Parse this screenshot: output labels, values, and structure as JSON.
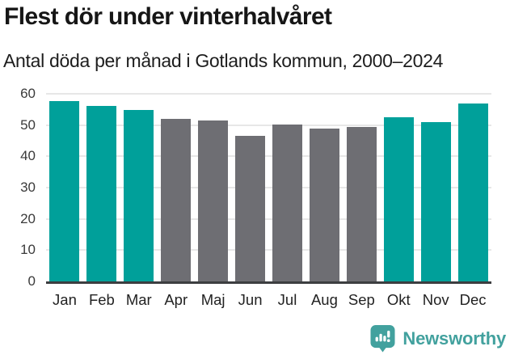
{
  "chart_data": {
    "type": "bar",
    "title": "Flest dör under vinterhalvåret",
    "subtitle": "Antal döda per månad i Gotlands kommun, 2000–2024",
    "categories": [
      "Jan",
      "Feb",
      "Mar",
      "Apr",
      "Maj",
      "Jun",
      "Jul",
      "Aug",
      "Sep",
      "Okt",
      "Nov",
      "Dec"
    ],
    "values": [
      57.6,
      56.2,
      54.8,
      51.9,
      51.4,
      46.5,
      50.3,
      48.8,
      49.5,
      52.5,
      51.0,
      56.8
    ],
    "highlight_categories": [
      "Jan",
      "Feb",
      "Mar",
      "Okt",
      "Nov",
      "Dec"
    ],
    "xlabel": "",
    "ylabel": "",
    "ylim": [
      0,
      60
    ],
    "yticks": [
      0,
      10,
      20,
      30,
      40,
      50,
      60
    ],
    "grid": true,
    "legend_position": "none",
    "colors": {
      "highlight": "#00a09a",
      "other": "#6e6e73",
      "gridline": "#e7e7e7",
      "axis": "#3c3e40"
    }
  },
  "footer": {
    "brand": "Newsworthy",
    "brand_color": "#42a19e",
    "logo_icon": "bar-chart-speech-bubble-icon"
  }
}
